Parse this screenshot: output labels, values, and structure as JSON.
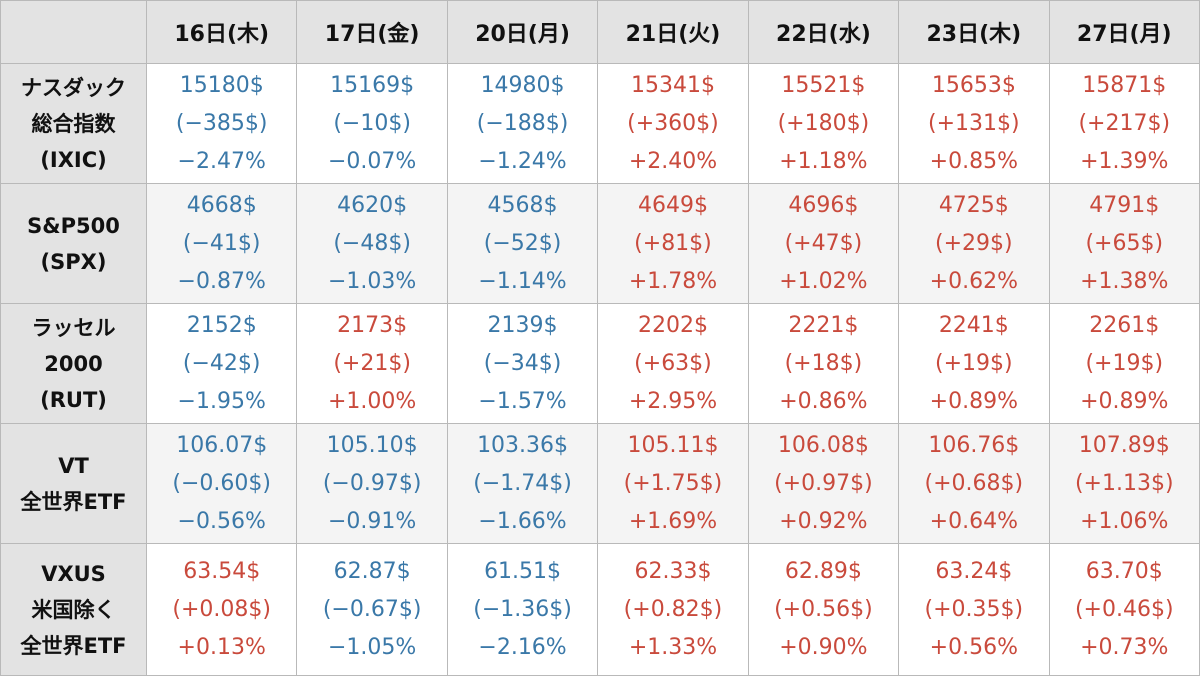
{
  "colors": {
    "down": "#3a78a8",
    "up": "#c94a3c",
    "header_bg": "#e3e3e3",
    "border": "#b9b9b9"
  },
  "table": {
    "corner": "",
    "columns": [
      "16日(木)",
      "17日(金)",
      "20日(月)",
      "21日(火)",
      "22日(水)",
      "23日(木)",
      "27日(月)"
    ],
    "rows": [
      {
        "label": [
          "ナスダック",
          "総合指数",
          "(IXIC)"
        ],
        "cells": [
          {
            "dir": "down",
            "price": "15180$",
            "change": "(−385$)",
            "pct": "−2.47%"
          },
          {
            "dir": "down",
            "price": "15169$",
            "change": "(−10$)",
            "pct": "−0.07%"
          },
          {
            "dir": "down",
            "price": "14980$",
            "change": "(−188$)",
            "pct": "−1.24%"
          },
          {
            "dir": "up",
            "price": "15341$",
            "change": "(+360$)",
            "pct": "+2.40%"
          },
          {
            "dir": "up",
            "price": "15521$",
            "change": "(+180$)",
            "pct": "+1.18%"
          },
          {
            "dir": "up",
            "price": "15653$",
            "change": "(+131$)",
            "pct": "+0.85%"
          },
          {
            "dir": "up",
            "price": "15871$",
            "change": "(+217$)",
            "pct": "+1.39%"
          }
        ]
      },
      {
        "label": [
          "S&P500",
          "(SPX)"
        ],
        "cells": [
          {
            "dir": "down",
            "price": "4668$",
            "change": "(−41$)",
            "pct": "−0.87%"
          },
          {
            "dir": "down",
            "price": "4620$",
            "change": "(−48$)",
            "pct": "−1.03%"
          },
          {
            "dir": "down",
            "price": "4568$",
            "change": "(−52$)",
            "pct": "−1.14%"
          },
          {
            "dir": "up",
            "price": "4649$",
            "change": "(+81$)",
            "pct": "+1.78%"
          },
          {
            "dir": "up",
            "price": "4696$",
            "change": "(+47$)",
            "pct": "+1.02%"
          },
          {
            "dir": "up",
            "price": "4725$",
            "change": "(+29$)",
            "pct": "+0.62%"
          },
          {
            "dir": "up",
            "price": "4791$",
            "change": "(+65$)",
            "pct": "+1.38%"
          }
        ]
      },
      {
        "label": [
          "ラッセル",
          "2000",
          "(RUT)"
        ],
        "cells": [
          {
            "dir": "down",
            "price": "2152$",
            "change": "(−42$)",
            "pct": "−1.95%"
          },
          {
            "dir": "up",
            "price": "2173$",
            "change": "(+21$)",
            "pct": "+1.00%"
          },
          {
            "dir": "down",
            "price": "2139$",
            "change": "(−34$)",
            "pct": "−1.57%"
          },
          {
            "dir": "up",
            "price": "2202$",
            "change": "(+63$)",
            "pct": "+2.95%"
          },
          {
            "dir": "up",
            "price": "2221$",
            "change": "(+18$)",
            "pct": "+0.86%"
          },
          {
            "dir": "up",
            "price": "2241$",
            "change": "(+19$)",
            "pct": "+0.89%"
          },
          {
            "dir": "up",
            "price": "2261$",
            "change": "(+19$)",
            "pct": "+0.89%"
          }
        ]
      },
      {
        "label": [
          "VT",
          "全世界ETF"
        ],
        "cells": [
          {
            "dir": "down",
            "price": "106.07$",
            "change": "(−0.60$)",
            "pct": "−0.56%"
          },
          {
            "dir": "down",
            "price": "105.10$",
            "change": "(−0.97$)",
            "pct": "−0.91%"
          },
          {
            "dir": "down",
            "price": "103.36$",
            "change": "(−1.74$)",
            "pct": "−1.66%"
          },
          {
            "dir": "up",
            "price": "105.11$",
            "change": "(+1.75$)",
            "pct": "+1.69%"
          },
          {
            "dir": "up",
            "price": "106.08$",
            "change": "(+0.97$)",
            "pct": "+0.92%"
          },
          {
            "dir": "up",
            "price": "106.76$",
            "change": "(+0.68$)",
            "pct": "+0.64%"
          },
          {
            "dir": "up",
            "price": "107.89$",
            "change": "(+1.13$)",
            "pct": "+1.06%"
          }
        ]
      },
      {
        "label": [
          "VXUS",
          "米国除く",
          "全世界ETF"
        ],
        "cells": [
          {
            "dir": "up",
            "price": "63.54$",
            "change": "(+0.08$)",
            "pct": "+0.13%"
          },
          {
            "dir": "down",
            "price": "62.87$",
            "change": "(−0.67$)",
            "pct": "−1.05%"
          },
          {
            "dir": "down",
            "price": "61.51$",
            "change": "(−1.36$)",
            "pct": "−2.16%"
          },
          {
            "dir": "up",
            "price": "62.33$",
            "change": "(+0.82$)",
            "pct": "+1.33%"
          },
          {
            "dir": "up",
            "price": "62.89$",
            "change": "(+0.56$)",
            "pct": "+0.90%"
          },
          {
            "dir": "up",
            "price": "63.24$",
            "change": "(+0.35$)",
            "pct": "+0.56%"
          },
          {
            "dir": "up",
            "price": "63.70$",
            "change": "(+0.46$)",
            "pct": "+0.73%"
          }
        ]
      }
    ]
  }
}
